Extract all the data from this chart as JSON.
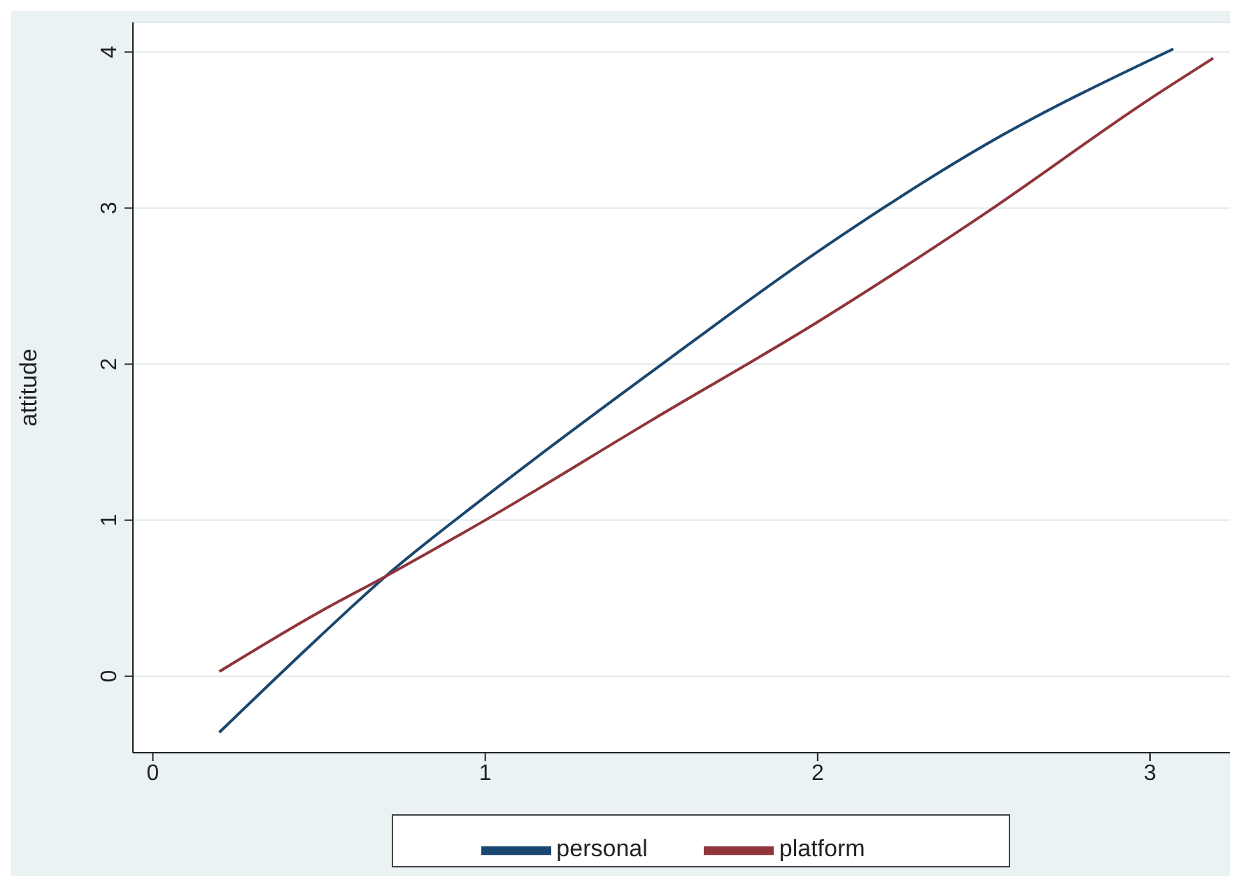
{
  "chart_data": {
    "type": "line",
    "ylabel": "attitude",
    "xlim": [
      -0.06,
      3.24
    ],
    "xticks": [
      0,
      1,
      2,
      3
    ],
    "ylim": [
      -0.49,
      4.19
    ],
    "yticks": [
      0,
      1,
      2,
      3,
      4
    ],
    "grid": "y",
    "legend": "bottom",
    "marker": "none",
    "line_style": "solid",
    "series": [
      {
        "name": "personal",
        "color": "#1a476f",
        "x": [
          0.2,
          0.5,
          0.7,
          1,
          1.5,
          2,
          2.5,
          3.07
        ],
        "values": [
          -0.36,
          0.25,
          0.64,
          1.15,
          1.95,
          2.72,
          3.4,
          4.02
        ]
      },
      {
        "name": "platform",
        "color": "#90353b",
        "x": [
          0.2,
          0.5,
          0.7,
          1,
          1.5,
          2,
          2.5,
          3,
          3.19
        ],
        "values": [
          0.03,
          0.41,
          0.64,
          1.0,
          1.64,
          2.27,
          2.96,
          3.7,
          3.96
        ]
      }
    ]
  }
}
